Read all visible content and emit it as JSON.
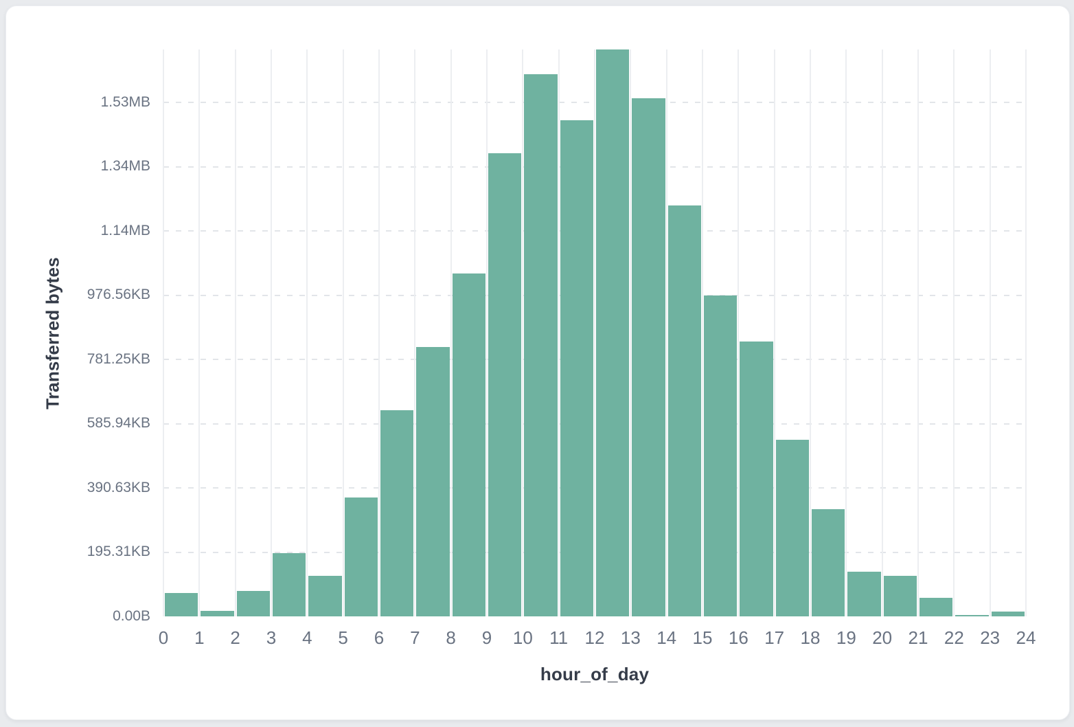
{
  "chart_data": {
    "type": "bar",
    "title": "",
    "xlabel": "hour_of_day",
    "ylabel": "Transferred bytes",
    "x_bins": [
      0,
      1,
      2,
      3,
      4,
      5,
      6,
      7,
      8,
      9,
      10,
      11,
      12,
      13,
      14,
      15,
      16,
      17,
      18,
      19,
      20,
      21,
      22,
      23
    ],
    "values_bytes": [
      72700,
      17100,
      79100,
      196800,
      126200,
      370100,
      641700,
      838500,
      1067400,
      1441700,
      1687700,
      1544400,
      1764700,
      1612800,
      1279100,
      998900,
      855600,
      549700,
      333700,
      139000,
      126200,
      57800,
      5000,
      14000
    ],
    "x_tick_labels": [
      "0",
      "1",
      "2",
      "3",
      "4",
      "5",
      "6",
      "7",
      "8",
      "9",
      "10",
      "11",
      "12",
      "13",
      "14",
      "15",
      "16",
      "17",
      "18",
      "19",
      "20",
      "21",
      "22",
      "23",
      "24"
    ],
    "y_tick_labels": [
      "0.00B",
      "195.31KB",
      "390.63KB",
      "585.94KB",
      "781.25KB",
      "976.56KB",
      "1.14MB",
      "1.34MB",
      "1.53MB"
    ],
    "y_tick_bytes": [
      0,
      200000,
      400000,
      600000,
      800000,
      1000000,
      1200000,
      1400000,
      1600000
    ],
    "ylim_bytes": [
      0,
      1764700
    ],
    "grid": {
      "vertical": "solid",
      "horizontal": "dashed",
      "legend": "none"
    },
    "colors": {
      "bar": "#6fb2a0",
      "grid_solid": "#eceef1",
      "grid_dashed": "#e2e5e9",
      "tick_text": "#6a7382",
      "axis_title_text": "#353c49",
      "card_background": "#ffffff",
      "page_background": "#e9ebee"
    }
  }
}
